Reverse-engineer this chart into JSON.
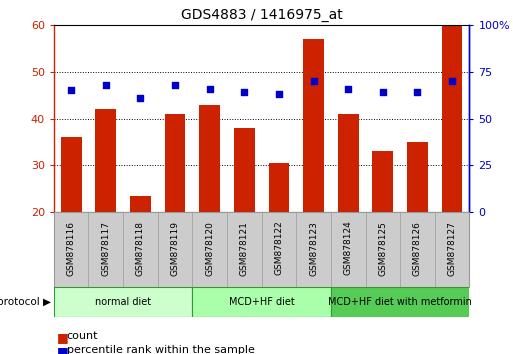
{
  "title": "GDS4883 / 1416975_at",
  "samples": [
    "GSM878116",
    "GSM878117",
    "GSM878118",
    "GSM878119",
    "GSM878120",
    "GSM878121",
    "GSM878122",
    "GSM878123",
    "GSM878124",
    "GSM878125",
    "GSM878126",
    "GSM878127"
  ],
  "counts": [
    36,
    42,
    23.5,
    41,
    43,
    38,
    30.5,
    57,
    41,
    33,
    35,
    60
  ],
  "percentiles": [
    65,
    68,
    61,
    68,
    66,
    64,
    63,
    70,
    66,
    64,
    64,
    70
  ],
  "bar_color": "#cc2200",
  "dot_color": "#0000cc",
  "ylim_left": [
    20,
    60
  ],
  "ylim_right": [
    0,
    100
  ],
  "yticks_left": [
    20,
    30,
    40,
    50,
    60
  ],
  "yticks_right": [
    0,
    25,
    50,
    75,
    100
  ],
  "ytick_labels_right": [
    "0",
    "25",
    "50",
    "75",
    "100%"
  ],
  "groups": [
    {
      "label": "normal diet",
      "start": 0,
      "end": 3,
      "color": "#ccffcc"
    },
    {
      "label": "MCD+HF diet",
      "start": 4,
      "end": 7,
      "color": "#aaffaa"
    },
    {
      "label": "MCD+HF diet with metformin",
      "start": 8,
      "end": 11,
      "color": "#55cc55"
    }
  ],
  "legend_count_label": "count",
  "legend_percentile_label": "percentile rank within the sample",
  "protocol_label": "protocol",
  "tick_label_area_bg": "#cccccc",
  "spine_color": "#888888"
}
